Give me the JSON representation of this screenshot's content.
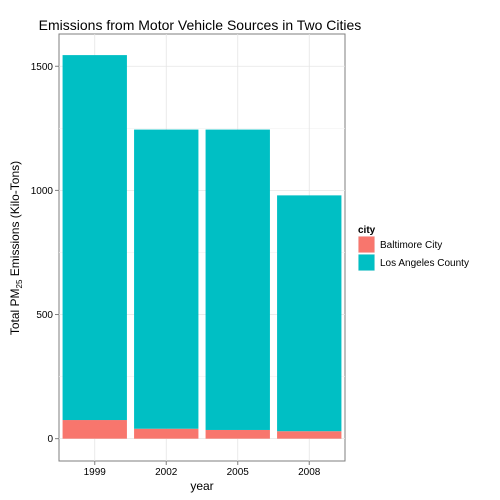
{
  "chart_data": {
    "type": "bar",
    "stacked": true,
    "title": "Emissions from Motor Vehicle Sources in Two Cities",
    "xlabel": "year",
    "ylabel": {
      "prefix": "Total PM",
      "subscript": "25",
      "suffix": " Emissions (Kilo-Tons)"
    },
    "categories": [
      "1999",
      "2002",
      "2005",
      "2008"
    ],
    "series": [
      {
        "name": "Baltimore City",
        "color": "#F8766D",
        "values": [
          75,
          40,
          35,
          30
        ]
      },
      {
        "name": "Los Angeles County",
        "color": "#00BFC4",
        "values": [
          1470,
          1205,
          1210,
          950
        ]
      }
    ],
    "ylim": [
      -90,
      1630
    ],
    "yticks": [
      0,
      500,
      1000,
      1500
    ],
    "grid": true,
    "legend": {
      "title": "city",
      "placement": "right"
    }
  }
}
